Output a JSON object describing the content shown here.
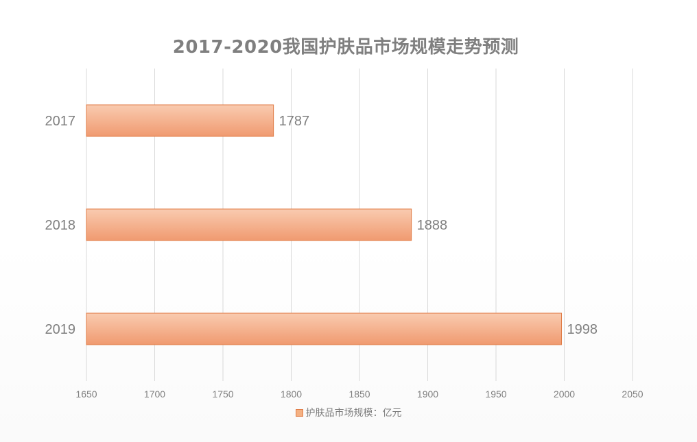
{
  "chart_data": {
    "type": "bar",
    "orientation": "horizontal",
    "title": "2017-2020我国护肤品市场规模走势预测",
    "categories": [
      "2017",
      "2018",
      "2019"
    ],
    "series": [
      {
        "name": "护肤品市场规模：亿元",
        "values": [
          1787,
          1888,
          1998
        ]
      }
    ],
    "data_labels": [
      "1787",
      "1888",
      "1998"
    ],
    "xlim": [
      1650,
      2050
    ],
    "x_ticks": [
      1650,
      1700,
      1750,
      1800,
      1850,
      1900,
      1950,
      2000,
      2050
    ],
    "xlabel": "",
    "ylabel": "",
    "grid": "vertical",
    "legend_position": "bottom",
    "colors": {
      "bar_fill_top": "#f8c4a6",
      "bar_fill_bottom": "#f2a07a",
      "bar_stroke": "#e07b45",
      "text": "#7f7f7f",
      "grid": "#d9d9d9"
    }
  }
}
